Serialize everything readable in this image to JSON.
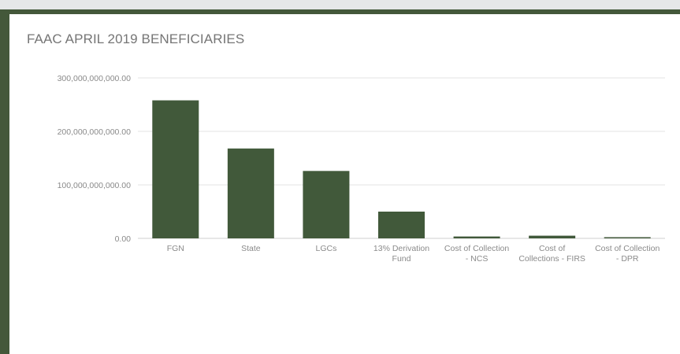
{
  "chart_data": {
    "type": "bar",
    "title": "FAAC APRIL 2019 BENEFICIARIES",
    "categories": [
      [
        "FGN"
      ],
      [
        "State"
      ],
      [
        "LGCs"
      ],
      [
        "13% Derivation",
        "Fund"
      ],
      [
        "Cost of Collection",
        "- NCS"
      ],
      [
        "Cost of",
        "Collections - FIRS"
      ],
      [
        "Cost of Collection",
        "- DPR"
      ]
    ],
    "values": [
      258000000000,
      168000000000,
      126000000000,
      50000000000,
      3500000000,
      5000000000,
      2000000000
    ],
    "ylim": [
      0,
      300000000000
    ],
    "yticks": [
      0,
      100000000000,
      200000000000,
      300000000000
    ],
    "ytick_labels": [
      "0.00",
      "100,000,000,000.00",
      "200,000,000,000.00",
      "300,000,000,000.00"
    ],
    "grid": true,
    "bar_color": "#41593a"
  }
}
